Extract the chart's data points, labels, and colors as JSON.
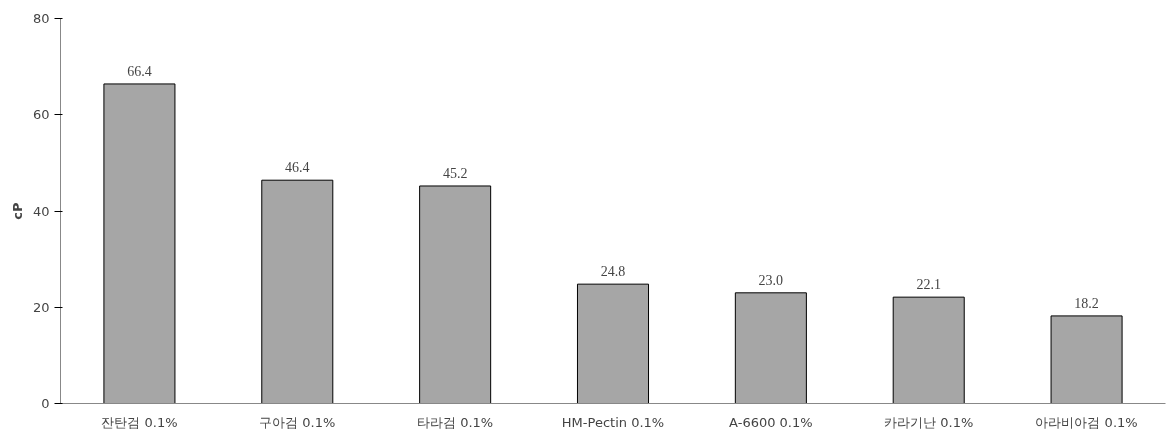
{
  "chart_data": {
    "type": "bar",
    "ylabel": "cP",
    "categories": [
      "잔탄검 0.1%",
      "구아검 0.1%",
      "타라검 0.1%",
      "HM-Pectin 0.1%",
      "A-6600 0.1%",
      "카라기난 0.1%",
      "아라비아검 0.1%"
    ],
    "values": [
      66.4,
      46.4,
      45.2,
      24.8,
      23.0,
      22.1,
      18.2
    ],
    "value_labels": [
      "66.4",
      "46.4",
      "45.2",
      "24.8",
      "23.0",
      "22.1",
      "18.2"
    ],
    "color": "#a6a6a6",
    "ylim": [
      0,
      80
    ],
    "yticks": [
      0,
      20,
      40,
      60,
      80
    ],
    "grid": false
  }
}
